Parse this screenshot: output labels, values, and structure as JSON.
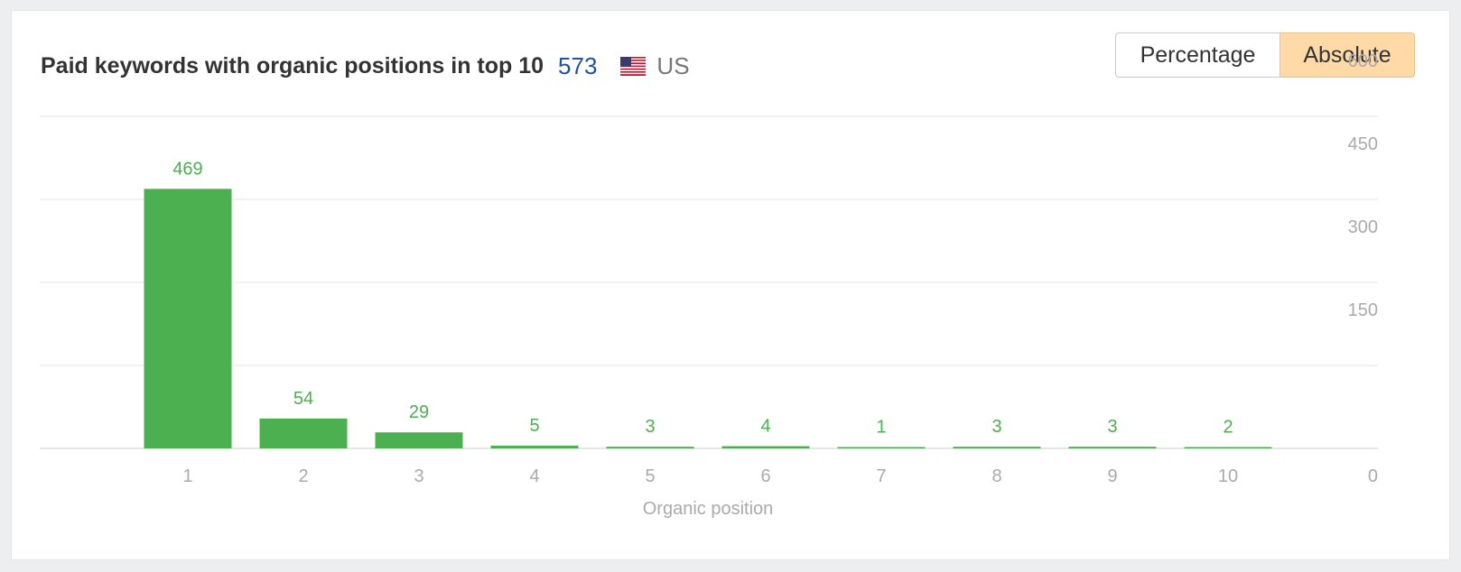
{
  "header": {
    "title": "Paid keywords with organic positions in top 10",
    "count": "573",
    "flag_icon": "us-flag-icon",
    "country": "US"
  },
  "toggle": {
    "percentage_label": "Percentage",
    "absolute_label": "Absolute",
    "selected": "Absolute",
    "selected_color": "#ffd9a6"
  },
  "chart_data": {
    "type": "bar",
    "categories": [
      "1",
      "2",
      "3",
      "4",
      "5",
      "6",
      "7",
      "8",
      "9",
      "10"
    ],
    "values": [
      469,
      54,
      29,
      5,
      3,
      4,
      1,
      3,
      3,
      2
    ],
    "xlabel": "Organic position",
    "ylabel": "",
    "ylim": [
      0,
      600
    ],
    "yticks": [
      0,
      150,
      300,
      450,
      600
    ],
    "y_axis_side": "right",
    "grid": true,
    "bar_color": "#4caf50"
  }
}
